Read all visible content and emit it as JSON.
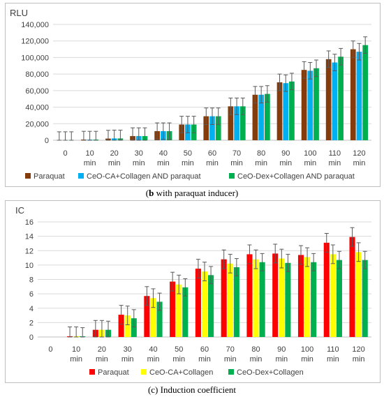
{
  "chart_data": [
    {
      "type": "bar",
      "panel": "b",
      "ylabel": "RLU",
      "ylim": [
        0,
        140000
      ],
      "yticks": [
        0,
        20000,
        40000,
        60000,
        80000,
        100000,
        120000,
        140000
      ],
      "ytick_labels": [
        "0",
        "20,000",
        "40,000",
        "60,000",
        "80,000",
        "100,000",
        "120,000",
        "140,000"
      ],
      "categories": [
        "0",
        "10 min",
        "20 min",
        "30 min",
        "40 min",
        "50 min",
        "60 min",
        "70 min",
        "80 min",
        "90 min",
        "100 min",
        "110 min",
        "120 min"
      ],
      "grid": true,
      "legend_position": "bottom",
      "series": [
        {
          "name": "Paraquat",
          "color": "#843c0c",
          "values": [
            200,
            800,
            2000,
            5000,
            11000,
            19000,
            29000,
            41000,
            55000,
            70000,
            85000,
            98000,
            110000
          ],
          "errors": [
            10000,
            10000,
            10000,
            10000,
            10000,
            10000,
            10000,
            10000,
            10000,
            10000,
            10000,
            10000,
            10000
          ]
        },
        {
          "name": "CeO-CA+Collagen AND paraquat",
          "color": "#00b0f0",
          "values": [
            200,
            800,
            2200,
            5000,
            11000,
            19000,
            29000,
            41000,
            55000,
            69000,
            84000,
            94000,
            107000
          ],
          "errors": [
            10000,
            10000,
            10000,
            10000,
            10000,
            10000,
            10000,
            10000,
            10000,
            10000,
            10000,
            10000,
            10000
          ]
        },
        {
          "name": "CeO-Dex+Collagen AND paraquat",
          "color": "#00b050",
          "values": [
            200,
            800,
            2200,
            5000,
            11000,
            19000,
            29000,
            41000,
            56000,
            71000,
            87000,
            101000,
            115000
          ],
          "errors": [
            10000,
            10000,
            10000,
            10000,
            10000,
            10000,
            10000,
            10000,
            10000,
            10000,
            10000,
            10000,
            10000
          ]
        }
      ]
    },
    {
      "type": "bar",
      "panel": "c",
      "ylabel": "IC",
      "ylim": [
        0,
        16
      ],
      "yticks": [
        0,
        2,
        4,
        6,
        8,
        10,
        12,
        14,
        16
      ],
      "ytick_labels": [
        "0",
        "2",
        "4",
        "6",
        "8",
        "10",
        "12",
        "14",
        "16"
      ],
      "categories": [
        "0",
        "10 min",
        "20 min",
        "30 min",
        "40 min",
        "50 min",
        "60 min",
        "70 min",
        "80 min",
        "90 min",
        "100 min",
        "110 min",
        "120 min"
      ],
      "grid": true,
      "legend_position": "bottom",
      "series": [
        {
          "name": "Paraquat",
          "color": "#ff0000",
          "values": [
            0,
            0.1,
            1.0,
            3.1,
            5.7,
            7.7,
            9.5,
            10.8,
            11.5,
            11.6,
            11.4,
            13.1,
            13.9
          ],
          "errors": [
            0,
            1.3,
            1.3,
            1.3,
            1.3,
            1.3,
            1.3,
            1.3,
            1.3,
            1.3,
            1.3,
            1.3,
            1.3
          ]
        },
        {
          "name": "CeO-CA+Collagen",
          "color": "#ffff00",
          "values": [
            0,
            0.1,
            1.0,
            3.0,
            5.4,
            7.3,
            9.1,
            10.2,
            10.8,
            10.9,
            11.1,
            11.5,
            11.8
          ],
          "errors": [
            0,
            1.3,
            1.3,
            1.3,
            1.3,
            1.3,
            1.3,
            1.3,
            1.3,
            1.3,
            1.3,
            1.3,
            1.3
          ]
        },
        {
          "name": "CeO-Dex+Collagen",
          "color": "#00b050",
          "values": [
            0,
            0.1,
            1.0,
            2.6,
            4.9,
            6.9,
            8.6,
            9.7,
            10.4,
            10.3,
            10.4,
            10.7,
            10.7
          ],
          "errors": [
            0,
            1.2,
            1.2,
            1.2,
            1.2,
            1.2,
            1.2,
            1.2,
            1.2,
            1.2,
            1.2,
            1.2,
            1.2
          ]
        }
      ]
    }
  ],
  "captions": {
    "b_label": "b",
    "b_text": " with paraquat inducer",
    "c_text": "(c) Induction coefficient"
  }
}
